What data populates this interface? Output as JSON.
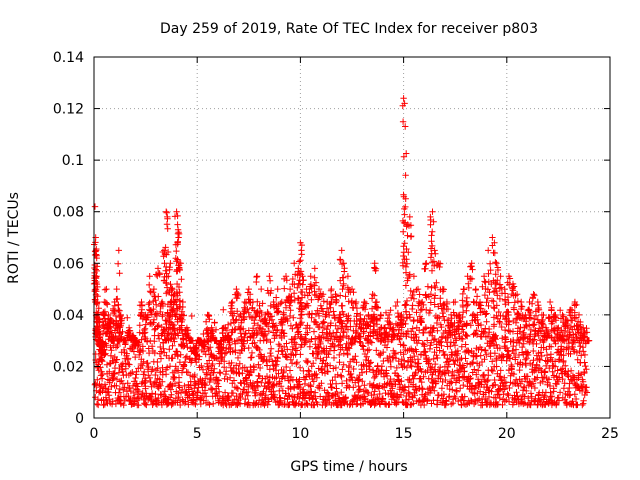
{
  "chart_data": {
    "type": "scatter",
    "title": "Day 259 of 2019, Rate Of TEC Index for receiver p803",
    "xlabel": "GPS time / hours",
    "ylabel": "ROTI / TECUs",
    "xlim": [
      0,
      25
    ],
    "ylim": [
      0,
      0.14
    ],
    "x_ticks": [
      0,
      5,
      10,
      15,
      20,
      25
    ],
    "y_ticks": [
      0,
      0.02,
      0.04,
      0.06,
      0.08,
      0.1,
      0.12,
      0.14
    ],
    "x_tick_labels": [
      "0",
      "5",
      "10",
      "15",
      "20",
      "25"
    ],
    "y_tick_labels": [
      "0",
      "0.02",
      "0.04",
      "0.06",
      "0.08",
      "0.1",
      "0.12",
      "0.14"
    ],
    "grid": true,
    "marker": "+",
    "series": [
      {
        "name": "ROTI",
        "color": "#ff0000",
        "x": [
          0.05,
          0.08,
          0.1,
          0.12,
          0.15,
          0.18,
          0.2,
          0.25,
          0.3,
          0.35,
          0.4,
          0.5,
          0.6,
          0.7,
          0.8,
          0.9,
          1.0,
          1.1,
          1.2,
          1.3,
          1.5,
          1.7,
          1.9,
          2.1,
          2.3,
          2.5,
          2.7,
          2.9,
          3.1,
          3.3,
          3.4,
          3.5,
          3.55,
          3.6,
          3.7,
          3.8,
          3.9,
          4.0,
          4.05,
          4.1,
          4.2,
          4.3,
          4.5,
          4.7,
          4.9,
          5.1,
          5.3,
          5.5,
          5.7,
          5.9,
          6.1,
          6.3,
          6.5,
          6.7,
          6.9,
          7.1,
          7.3,
          7.5,
          7.7,
          7.9,
          8.1,
          8.3,
          8.5,
          8.7,
          8.9,
          9.1,
          9.3,
          9.5,
          9.7,
          9.9,
          10.0,
          10.05,
          10.1,
          10.3,
          10.5,
          10.7,
          10.9,
          11.1,
          11.3,
          11.5,
          11.7,
          11.9,
          12.0,
          12.1,
          12.3,
          12.5,
          12.7,
          12.9,
          13.1,
          13.3,
          13.5,
          13.6,
          13.7,
          13.9,
          14.1,
          14.3,
          14.5,
          14.7,
          14.9,
          15.0,
          15.05,
          15.1,
          15.2,
          15.3,
          15.5,
          15.7,
          15.9,
          16.1,
          16.3,
          16.4,
          16.5,
          16.7,
          16.9,
          17.1,
          17.3,
          17.5,
          17.7,
          17.9,
          18.1,
          18.3,
          18.5,
          18.7,
          18.9,
          19.1,
          19.3,
          19.4,
          19.5,
          19.7,
          19.9,
          20.1,
          20.3,
          20.5,
          20.7,
          20.9,
          21.1,
          21.3,
          21.5,
          21.7,
          21.9,
          22.1,
          22.3,
          22.5,
          22.7,
          22.9,
          23.1,
          23.3,
          23.5,
          23.7,
          23.9
        ],
        "y": [
          0.082,
          0.07,
          0.065,
          0.055,
          0.045,
          0.04,
          0.035,
          0.03,
          0.028,
          0.025,
          0.022,
          0.045,
          0.05,
          0.04,
          0.038,
          0.03,
          0.045,
          0.05,
          0.065,
          0.04,
          0.03,
          0.035,
          0.032,
          0.028,
          0.045,
          0.04,
          0.055,
          0.05,
          0.058,
          0.045,
          0.065,
          0.08,
          0.078,
          0.055,
          0.06,
          0.05,
          0.048,
          0.08,
          0.075,
          0.07,
          0.06,
          0.045,
          0.035,
          0.03,
          0.025,
          0.03,
          0.028,
          0.04,
          0.035,
          0.03,
          0.025,
          0.035,
          0.032,
          0.045,
          0.05,
          0.04,
          0.045,
          0.05,
          0.045,
          0.055,
          0.05,
          0.04,
          0.055,
          0.045,
          0.05,
          0.045,
          0.055,
          0.05,
          0.06,
          0.058,
          0.068,
          0.065,
          0.055,
          0.05,
          0.055,
          0.058,
          0.05,
          0.048,
          0.045,
          0.05,
          0.048,
          0.04,
          0.065,
          0.06,
          0.055,
          0.05,
          0.045,
          0.04,
          0.045,
          0.04,
          0.048,
          0.06,
          0.045,
          0.04,
          0.035,
          0.04,
          0.035,
          0.045,
          0.04,
          0.124,
          0.122,
          0.085,
          0.075,
          0.078,
          0.055,
          0.05,
          0.045,
          0.06,
          0.078,
          0.08,
          0.065,
          0.06,
          0.05,
          0.045,
          0.04,
          0.045,
          0.04,
          0.05,
          0.055,
          0.06,
          0.05,
          0.045,
          0.055,
          0.065,
          0.07,
          0.068,
          0.06,
          0.055,
          0.05,
          0.055,
          0.052,
          0.048,
          0.045,
          0.04,
          0.045,
          0.048,
          0.045,
          0.04,
          0.035,
          0.045,
          0.04,
          0.035,
          0.04,
          0.038,
          0.042,
          0.045,
          0.04,
          0.035,
          0.03
        ],
        "baseline_band": [
          0.005,
          0.03
        ]
      }
    ]
  }
}
